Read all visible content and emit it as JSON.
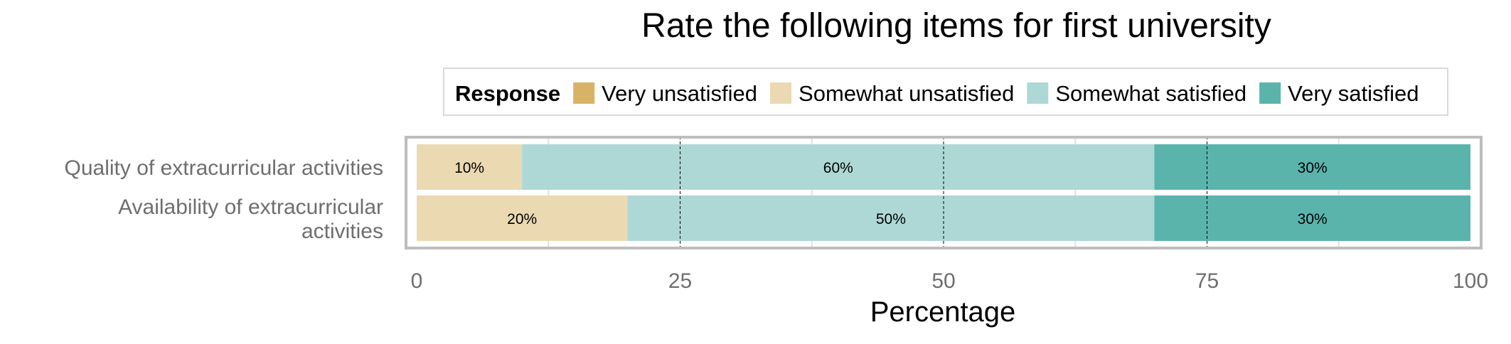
{
  "chart_data": {
    "type": "bar",
    "orientation": "horizontal",
    "stacked": true,
    "title": "Rate the following items for first university",
    "xlabel": "Percentage",
    "ylabel": "",
    "xlim": [
      0,
      100
    ],
    "xticks": [
      "0",
      "25",
      "50",
      "75",
      "100"
    ],
    "grid": true,
    "legend": {
      "title": "Response",
      "placement": "top",
      "entries": [
        "Very unsatisfied",
        "Somewhat unsatisfied",
        "Somewhat satisfied",
        "Very satisfied"
      ]
    },
    "categories": [
      [
        "Quality of extracurricular activities"
      ],
      [
        "Availability of extracurricular",
        "activities"
      ]
    ],
    "series": [
      {
        "name": "Very unsatisfied",
        "color": "#d9b365",
        "values": [
          0,
          0
        ],
        "labels": [
          "",
          ""
        ]
      },
      {
        "name": "Somewhat unsatisfied",
        "color": "#ebd9b2",
        "values": [
          10,
          20
        ],
        "labels": [
          "10%",
          "20%"
        ]
      },
      {
        "name": "Somewhat satisfied",
        "color": "#add8d5",
        "values": [
          60,
          50
        ],
        "labels": [
          "60%",
          "50%"
        ]
      },
      {
        "name": "Very satisfied",
        "color": "#5ab4ac",
        "values": [
          30,
          30
        ],
        "labels": [
          "30%",
          "30%"
        ]
      }
    ]
  }
}
